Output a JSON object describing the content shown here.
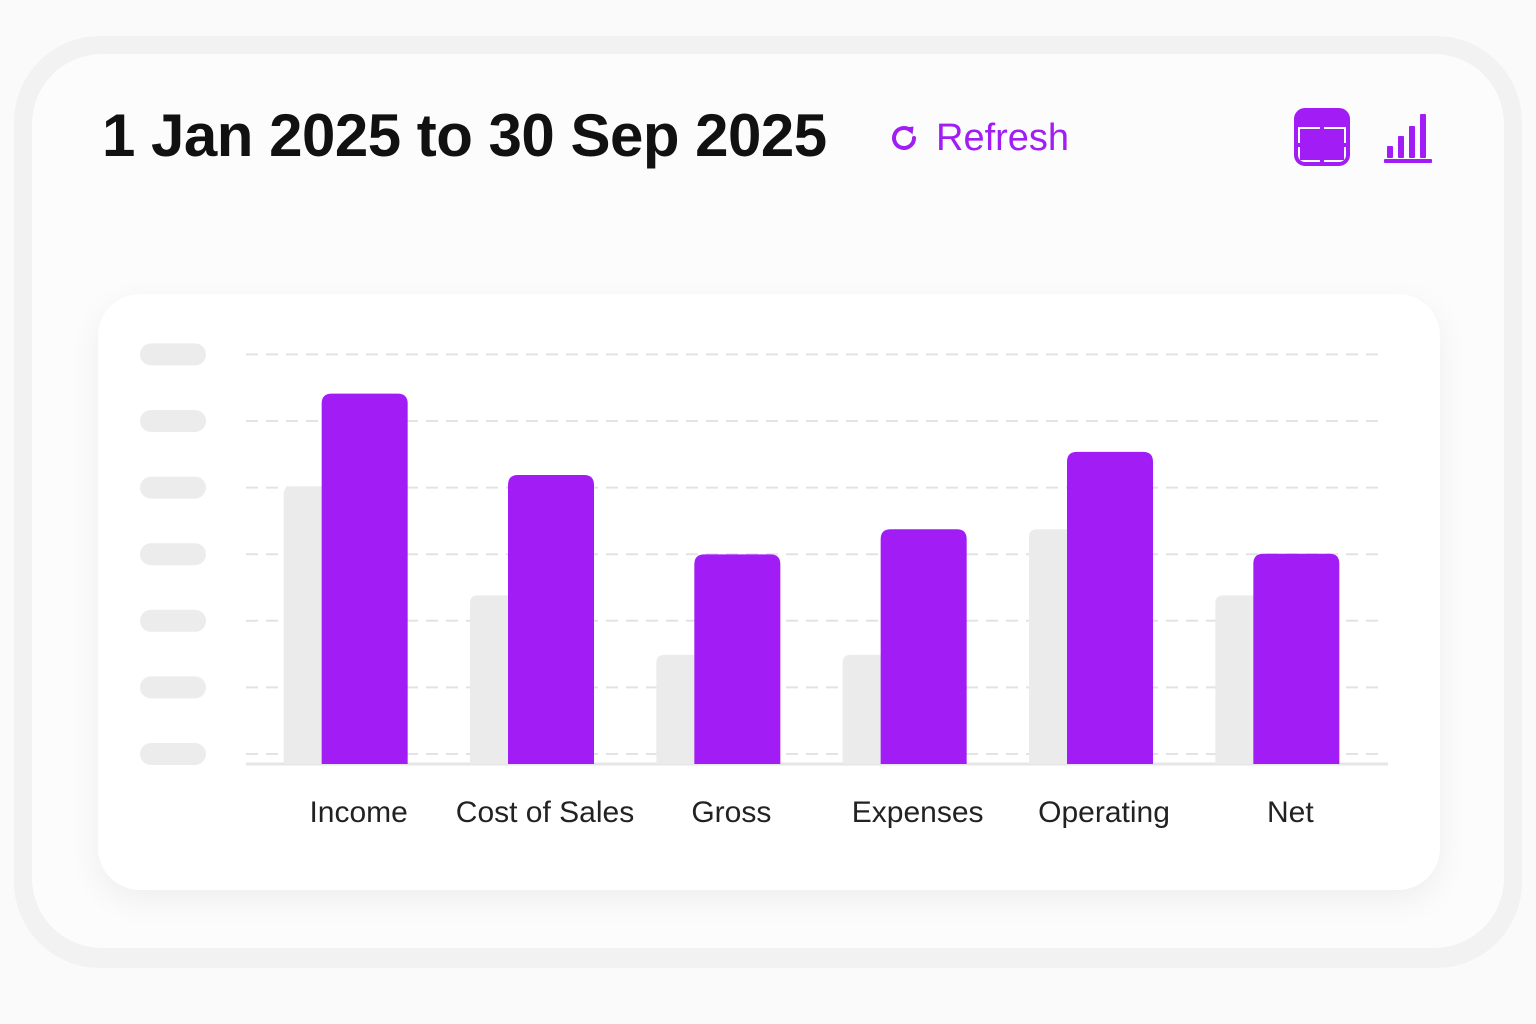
{
  "header": {
    "date_range": "1 Jan 2025 to 30 Sep 2025",
    "refresh_label": "Refresh"
  },
  "view_toggles": {
    "table_icon": "table-view-icon",
    "chart_icon": "bar-chart-view-icon",
    "active": "chart"
  },
  "colors": {
    "accent": "#a21cf5",
    "comparison_bar": "#ebebeb",
    "placeholder_tick": "#ececec",
    "gridline": "#e3e3e3"
  },
  "chart_data": {
    "type": "bar",
    "categories": [
      "Income",
      "Cost of Sales",
      "Gross",
      "Expenses",
      "Operating",
      "Net"
    ],
    "series": [
      {
        "values": [
          4.2,
          2.55,
          1.65,
          1.65,
          3.55,
          2.55
        ]
      },
      {
        "values": [
          5.6,
          4.37,
          3.17,
          3.55,
          4.72,
          3.18
        ]
      }
    ],
    "ylim": [
      0,
      6.2
    ],
    "grid": true,
    "y_tick_labels_placeholder": true,
    "y_tick_count": 7
  }
}
